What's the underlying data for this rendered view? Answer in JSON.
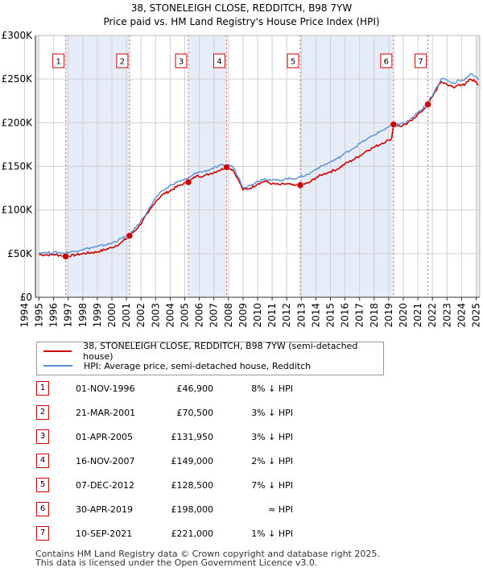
{
  "title_line1": "38, STONELEIGH CLOSE, REDDITCH, B98 7YW",
  "title_line2": "Price paid vs. HM Land Registry's House Price Index (HPI)",
  "chart_data": {
    "type": "line",
    "xlim": [
      1994.75,
      2025.25
    ],
    "ylim": [
      0,
      300000
    ],
    "yticks": [
      0,
      50000,
      100000,
      150000,
      200000,
      250000,
      300000
    ],
    "ytick_labels": [
      "£0",
      "£50K",
      "£100K",
      "£150K",
      "£200K",
      "£250K",
      "£300K"
    ],
    "xticks": [
      "1994",
      "1995",
      "1996",
      "1997",
      "1998",
      "1999",
      "2000",
      "2001",
      "2002",
      "2003",
      "2004",
      "2005",
      "2006",
      "2007",
      "2008",
      "2009",
      "2010",
      "2011",
      "2012",
      "2013",
      "2014",
      "2015",
      "2016",
      "2017",
      "2018",
      "2019",
      "2020",
      "2021",
      "2022",
      "2023",
      "2024",
      "2025"
    ],
    "grid": true,
    "colors": {
      "property": "#cc0000",
      "hpi": "#5b8fd4",
      "shade": "#dde6f5"
    },
    "series": [
      {
        "name": "38, STONELEIGH CLOSE, REDDITCH, B98 7YW (semi-detached house)",
        "color": "#cc0000",
        "points": [
          [
            1995.0,
            49000
          ],
          [
            1995.5,
            48500
          ],
          [
            1996.0,
            49000
          ],
          [
            1996.5,
            48000
          ],
          [
            1996.83,
            46900
          ],
          [
            1997.5,
            48500
          ],
          [
            1998.0,
            50000
          ],
          [
            1999.0,
            52000
          ],
          [
            2000.0,
            57000
          ],
          [
            2000.6,
            62000
          ],
          [
            2001.21,
            70500
          ],
          [
            2001.8,
            80000
          ],
          [
            2002.5,
            97000
          ],
          [
            2003.0,
            110000
          ],
          [
            2003.5,
            118000
          ],
          [
            2004.0,
            122000
          ],
          [
            2004.6,
            128000
          ],
          [
            2005.25,
            131950
          ],
          [
            2005.8,
            139000
          ],
          [
            2006.3,
            139000
          ],
          [
            2006.8,
            142000
          ],
          [
            2007.3,
            145000
          ],
          [
            2007.87,
            149000
          ],
          [
            2008.3,
            146000
          ],
          [
            2008.7,
            134000
          ],
          [
            2009.0,
            123000
          ],
          [
            2009.5,
            125000
          ],
          [
            2010.0,
            130000
          ],
          [
            2010.5,
            133000
          ],
          [
            2011.0,
            130000
          ],
          [
            2011.5,
            129000
          ],
          [
            2012.0,
            130000
          ],
          [
            2012.5,
            128000
          ],
          [
            2012.93,
            128500
          ],
          [
            2013.5,
            131000
          ],
          [
            2014.0,
            137000
          ],
          [
            2014.5,
            141000
          ],
          [
            2015.0,
            144000
          ],
          [
            2015.5,
            147000
          ],
          [
            2016.0,
            153000
          ],
          [
            2016.5,
            157000
          ],
          [
            2017.0,
            162000
          ],
          [
            2017.5,
            168000
          ],
          [
            2018.0,
            172000
          ],
          [
            2018.5,
            176000
          ],
          [
            2019.0,
            180000
          ],
          [
            2019.2,
            182000
          ],
          [
            2019.33,
            198000
          ],
          [
            2019.8,
            196000
          ],
          [
            2020.2,
            198000
          ],
          [
            2020.7,
            205000
          ],
          [
            2021.2,
            212000
          ],
          [
            2021.69,
            221000
          ],
          [
            2022.2,
            236000
          ],
          [
            2022.6,
            247000
          ],
          [
            2023.0,
            244000
          ],
          [
            2023.5,
            240000
          ],
          [
            2023.8,
            244000
          ],
          [
            2024.2,
            243000
          ],
          [
            2024.6,
            250000
          ],
          [
            2025.0,
            247000
          ],
          [
            2025.15,
            243000
          ]
        ]
      },
      {
        "name": "HPI: Average price, semi-detached house, Redditch",
        "color": "#5b8fd4",
        "points": [
          [
            1995.0,
            51500
          ],
          [
            1995.5,
            51000
          ],
          [
            1996.0,
            51500
          ],
          [
            1996.5,
            51000
          ],
          [
            1996.83,
            51000
          ],
          [
            1997.5,
            53000
          ],
          [
            1998.0,
            55000
          ],
          [
            1999.0,
            58000
          ],
          [
            2000.0,
            62000
          ],
          [
            2000.6,
            67000
          ],
          [
            2001.21,
            72500
          ],
          [
            2001.8,
            83000
          ],
          [
            2002.5,
            100000
          ],
          [
            2003.0,
            114000
          ],
          [
            2003.5,
            122000
          ],
          [
            2004.0,
            128000
          ],
          [
            2004.6,
            133000
          ],
          [
            2005.25,
            136000
          ],
          [
            2005.8,
            143000
          ],
          [
            2006.3,
            144000
          ],
          [
            2006.8,
            147000
          ],
          [
            2007.3,
            150000
          ],
          [
            2007.87,
            152000
          ],
          [
            2008.3,
            150000
          ],
          [
            2008.7,
            137000
          ],
          [
            2009.0,
            126000
          ],
          [
            2009.5,
            128000
          ],
          [
            2010.0,
            133000
          ],
          [
            2010.5,
            136000
          ],
          [
            2011.0,
            134000
          ],
          [
            2011.5,
            134000
          ],
          [
            2012.0,
            136000
          ],
          [
            2012.5,
            136000
          ],
          [
            2012.93,
            138000
          ],
          [
            2013.5,
            141000
          ],
          [
            2014.0,
            147000
          ],
          [
            2014.5,
            151000
          ],
          [
            2015.0,
            155000
          ],
          [
            2015.5,
            159000
          ],
          [
            2016.0,
            165000
          ],
          [
            2016.5,
            170000
          ],
          [
            2017.0,
            176000
          ],
          [
            2017.5,
            181000
          ],
          [
            2018.0,
            186000
          ],
          [
            2018.5,
            191000
          ],
          [
            2019.0,
            195000
          ],
          [
            2019.33,
            198000
          ],
          [
            2019.8,
            199000
          ],
          [
            2020.2,
            200000
          ],
          [
            2020.7,
            207000
          ],
          [
            2021.2,
            214000
          ],
          [
            2021.69,
            223000
          ],
          [
            2022.2,
            238000
          ],
          [
            2022.6,
            250000
          ],
          [
            2023.0,
            249000
          ],
          [
            2023.5,
            245000
          ],
          [
            2023.8,
            249000
          ],
          [
            2024.2,
            249000
          ],
          [
            2024.6,
            256000
          ],
          [
            2025.0,
            253000
          ],
          [
            2025.15,
            249000
          ]
        ]
      }
    ],
    "sale_markers": [
      {
        "label": "1",
        "x": 1996.83,
        "y": 46900
      },
      {
        "label": "2",
        "x": 2001.21,
        "y": 70500
      },
      {
        "label": "3",
        "x": 2005.25,
        "y": 131950
      },
      {
        "label": "4",
        "x": 2007.87,
        "y": 149000
      },
      {
        "label": "5",
        "x": 2012.93,
        "y": 128500
      },
      {
        "label": "6",
        "x": 2019.33,
        "y": 198000
      },
      {
        "label": "7",
        "x": 2021.69,
        "y": 221000
      }
    ],
    "shaded_periods": [
      [
        1994.75,
        1995.0
      ],
      [
        2025.0,
        2025.25
      ]
    ]
  },
  "legend": {
    "property_label": "38, STONELEIGH CLOSE, REDDITCH, B98 7YW (semi-detached house)",
    "hpi_label": "HPI: Average price, semi-detached house, Redditch"
  },
  "sales": [
    {
      "num": "1",
      "date": "01-NOV-1996",
      "price": "£46,900",
      "hpi": "8% ↓ HPI"
    },
    {
      "num": "2",
      "date": "21-MAR-2001",
      "price": "£70,500",
      "hpi": "3% ↓ HPI"
    },
    {
      "num": "3",
      "date": "01-APR-2005",
      "price": "£131,950",
      "hpi": "3% ↓ HPI"
    },
    {
      "num": "4",
      "date": "16-NOV-2007",
      "price": "£149,000",
      "hpi": "2% ↓ HPI"
    },
    {
      "num": "5",
      "date": "07-DEC-2012",
      "price": "£128,500",
      "hpi": "7% ↓ HPI"
    },
    {
      "num": "6",
      "date": "30-APR-2019",
      "price": "£198,000",
      "hpi": "≈ HPI"
    },
    {
      "num": "7",
      "date": "10-SEP-2021",
      "price": "£221,000",
      "hpi": "1% ↓ HPI"
    }
  ],
  "footer_line1": "Contains HM Land Registry data © Crown copyright and database right 2025.",
  "footer_line2": "This data is licensed under the Open Government Licence v3.0."
}
